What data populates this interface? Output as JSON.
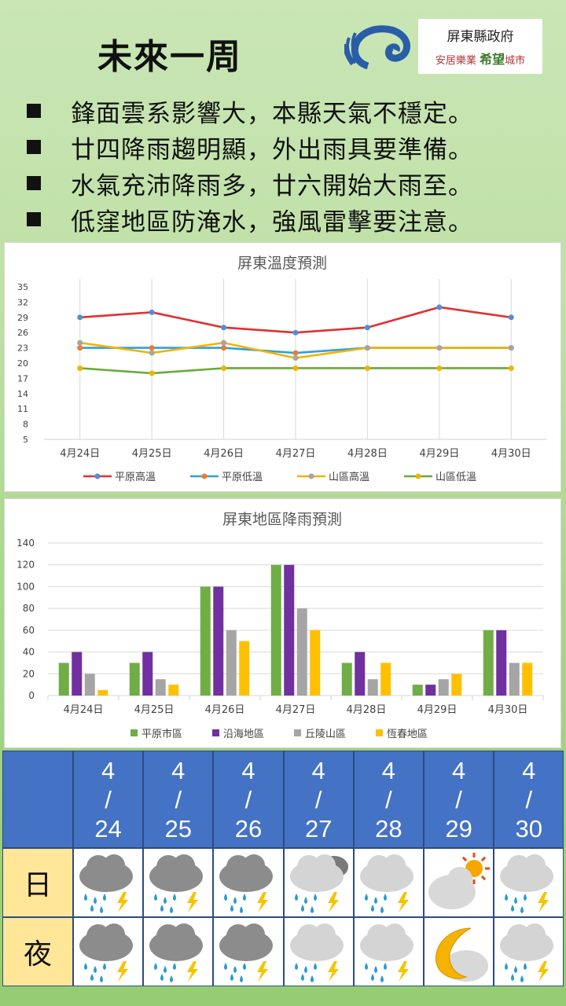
{
  "header": {
    "title": "未來一周",
    "gov_logo_line1": "屏東縣政府",
    "gov_logo_line2_a": "安居樂業",
    "gov_logo_line2_b": "希望",
    "gov_logo_line2_c": "城市"
  },
  "bullets": [
    "鋒面雲系影響大，本縣天氣不穩定。",
    "廿四降雨趨明顯，外出雨具要準備。",
    "水氣充沛降雨多，廿六開始大雨至。",
    "低窪地區防淹水，強風雷擊要注意。"
  ],
  "chart_data": [
    {
      "type": "line",
      "title": "屏東溫度預測",
      "categories": [
        "4月24日",
        "4月25日",
        "4月26日",
        "4月27日",
        "4月28日",
        "4月29日",
        "4月30日"
      ],
      "series": [
        {
          "name": "平原高溫",
          "color": "#e03030",
          "values": [
            29,
            30,
            27,
            26,
            27,
            31,
            29
          ]
        },
        {
          "name": "平原低溫",
          "color": "#2e9fe0",
          "values": [
            23,
            23,
            23,
            22,
            23,
            23,
            23
          ]
        },
        {
          "name": "山區高溫",
          "color": "#f0b400",
          "values": [
            24,
            22,
            24,
            21,
            23,
            23,
            23
          ]
        },
        {
          "name": "山區低溫",
          "color": "#6aaa3a",
          "values": [
            19,
            18,
            19,
            19,
            19,
            19,
            19
          ]
        }
      ],
      "yticks": [
        5,
        8,
        11,
        14,
        17,
        20,
        23,
        26,
        29,
        32,
        35
      ],
      "ylim": [
        5,
        35
      ],
      "grid": "vertical",
      "legend": "bottom"
    },
    {
      "type": "bar",
      "title": "屏東地區降雨預測",
      "categories": [
        "4月24日",
        "4月25日",
        "4月26日",
        "4月27日",
        "4月28日",
        "4月29日",
        "4月30日"
      ],
      "series": [
        {
          "name": "平原市區",
          "color": "#70ad47",
          "values": [
            30,
            30,
            100,
            120,
            30,
            10,
            60
          ]
        },
        {
          "name": "沿海地區",
          "color": "#7030a0",
          "values": [
            40,
            40,
            100,
            120,
            40,
            10,
            60
          ]
        },
        {
          "name": "丘陵山區",
          "color": "#a5a5a5",
          "values": [
            20,
            15,
            60,
            80,
            15,
            15,
            30
          ]
        },
        {
          "name": "恆春地區",
          "color": "#ffc000",
          "values": [
            5,
            10,
            50,
            60,
            30,
            20,
            30
          ]
        }
      ],
      "yticks": [
        0,
        20,
        40,
        60,
        80,
        100,
        120,
        140
      ],
      "ylim": [
        0,
        140
      ],
      "grid": "horizontal",
      "legend": "bottom"
    }
  ],
  "forecast": {
    "day_label": "日",
    "night_label": "夜",
    "dates": [
      {
        "month": "4",
        "sep": "/",
        "day": "24"
      },
      {
        "month": "4",
        "sep": "/",
        "day": "25"
      },
      {
        "month": "4",
        "sep": "/",
        "day": "26"
      },
      {
        "month": "4",
        "sep": "/",
        "day": "27"
      },
      {
        "month": "4",
        "sep": "/",
        "day": "28"
      },
      {
        "month": "4",
        "sep": "/",
        "day": "29"
      },
      {
        "month": "4",
        "sep": "/",
        "day": "30"
      }
    ],
    "day_icons": [
      "dark-cloud-thunder-rain-icon",
      "dark-cloud-thunder-rain-icon",
      "dark-cloud-thunder-rain-icon",
      "cloudy-thunder-rain-icon",
      "light-cloud-thunder-rain-icon",
      "sun-behind-cloud-icon",
      "light-cloud-thunder-rain-icon"
    ],
    "night_icons": [
      "dark-cloud-thunder-rain-icon",
      "dark-cloud-thunder-rain-icon",
      "dark-cloud-thunder-rain-icon",
      "light-cloud-thunder-rain-icon",
      "light-cloud-thunder-rain-icon",
      "moon-behind-cloud-icon",
      "light-cloud-thunder-rain-icon"
    ]
  }
}
